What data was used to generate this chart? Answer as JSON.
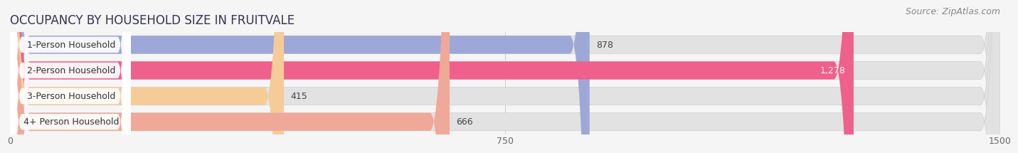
{
  "title": "OCCUPANCY BY HOUSEHOLD SIZE IN FRUITVALE",
  "source": "Source: ZipAtlas.com",
  "categories": [
    "1-Person Household",
    "2-Person Household",
    "3-Person Household",
    "4+ Person Household"
  ],
  "values": [
    878,
    1278,
    415,
    666
  ],
  "bar_colors": [
    "#9da8d8",
    "#f0608c",
    "#f5cc98",
    "#f0a898"
  ],
  "bar_labels": [
    "878",
    "1,278",
    "415",
    "666"
  ],
  "label_colors": [
    "#444444",
    "#ffffff",
    "#444444",
    "#444444"
  ],
  "xlim": [
    0,
    1500
  ],
  "xticks": [
    0,
    750,
    1500
  ],
  "background_color": "#f5f5f5",
  "bar_bg_color": "#e2e2e2",
  "title_fontsize": 12,
  "source_fontsize": 9,
  "tick_fontsize": 9,
  "bar_label_fontsize": 9,
  "category_fontsize": 9
}
